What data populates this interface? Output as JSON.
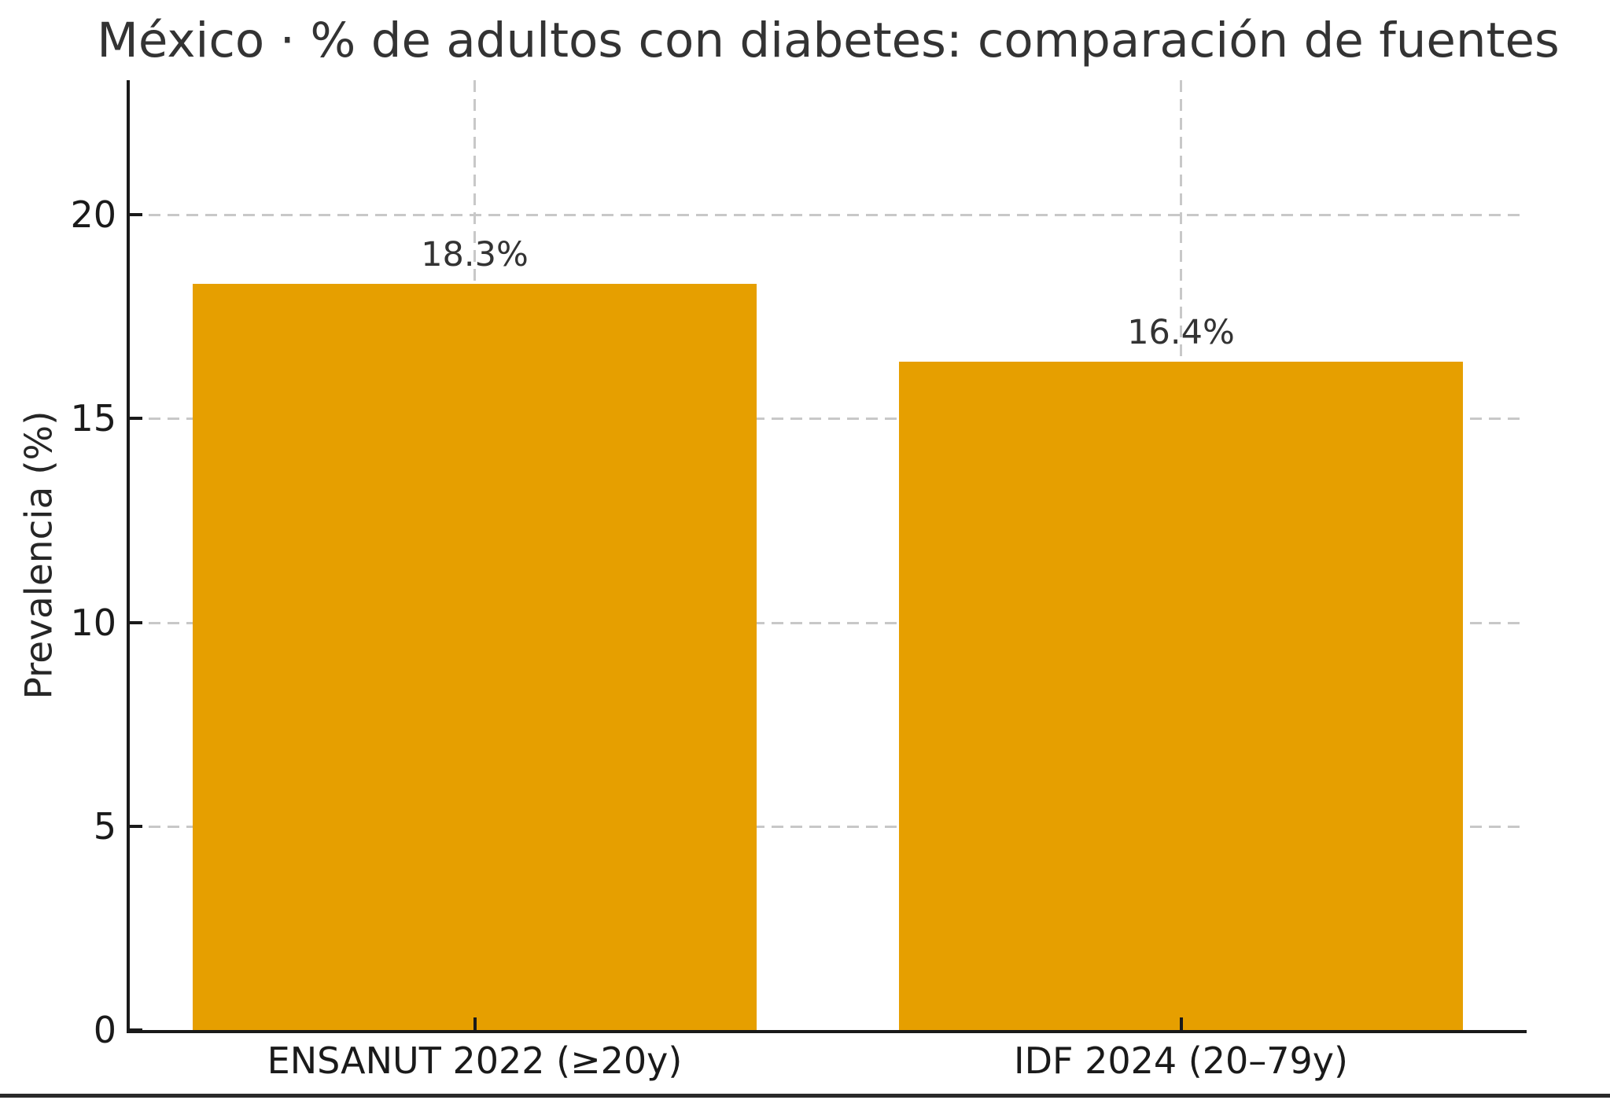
{
  "chart_data": {
    "type": "bar",
    "title": "México · % de adultos con diabetes: comparación de fuentes",
    "ylabel": "Prevalencia (%)",
    "xlabel": "",
    "categories": [
      "ENSANUT 2022 (≥20y)",
      "IDF 2024 (20–79y)"
    ],
    "values": [
      18.3,
      16.4
    ],
    "value_labels": [
      "18.3%",
      "16.4%"
    ],
    "y_ticks": [
      0,
      5,
      10,
      15,
      20
    ],
    "y_tick_labels": [
      "0",
      "5",
      "10",
      "15",
      "20"
    ],
    "ylim": [
      0,
      23.3
    ],
    "grid": "dashed horizontal at y ticks and dashed vertical at bar centers, drawn behind bars",
    "legend": "none",
    "bar_color": "#E69F00",
    "grid_color": "#C8C8C8",
    "axis_color": "#1A1A1A",
    "text_color": "#333333"
  }
}
